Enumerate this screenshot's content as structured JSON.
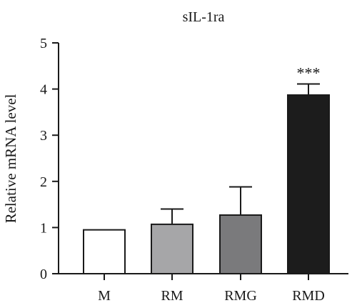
{
  "chart_data": {
    "type": "bar",
    "title": "sIL-1ra",
    "ylabel": "Relative mRNA level",
    "xlabel": "",
    "categories": [
      "M",
      "RM",
      "RMG",
      "RMD"
    ],
    "values": [
      0.95,
      1.07,
      1.27,
      3.87
    ],
    "error_upper": [
      0.0,
      0.33,
      0.61,
      0.24
    ],
    "bar_colors": [
      "#ffffff",
      "#a6a6a8",
      "#7a7a7c",
      "#1c1c1c"
    ],
    "bar_outline_color": "#1a1a1a",
    "annotations": [
      {
        "category": "RMD",
        "text": "***"
      }
    ],
    "ylim": [
      0,
      5
    ],
    "yticks": [
      0,
      1,
      2,
      3,
      4,
      5
    ],
    "grid": false,
    "legend": "none"
  }
}
